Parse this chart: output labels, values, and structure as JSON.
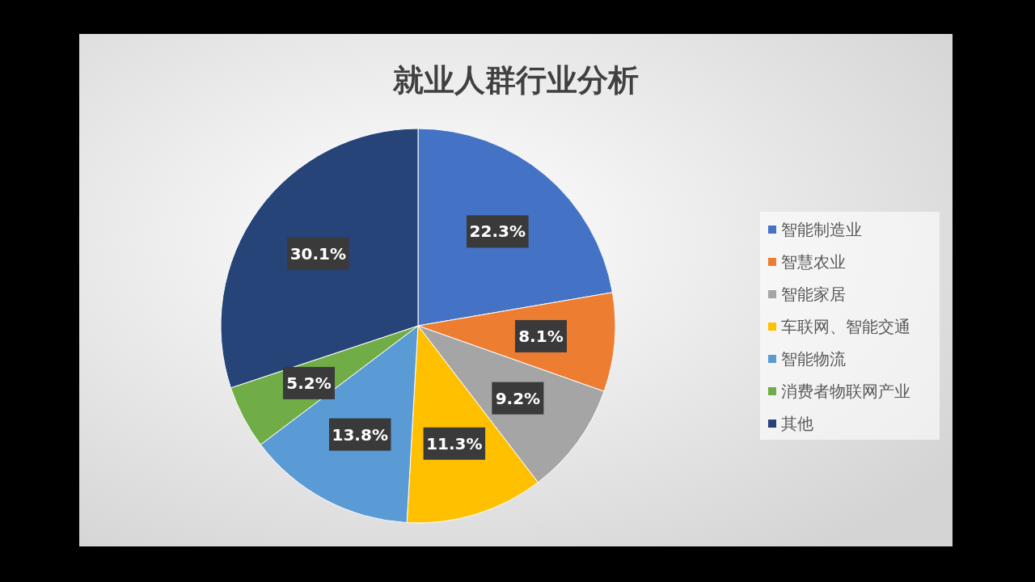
{
  "chart_data": {
    "type": "pie",
    "title": "就业人群行业分析",
    "categories": [
      "智能制造业",
      "智慧农业",
      "智能家居",
      "车联网、智能交通",
      "智能物流",
      "消费者物联网产业",
      "其他"
    ],
    "values": [
      22.3,
      8.1,
      9.2,
      11.3,
      13.8,
      5.2,
      30.1
    ],
    "colors": [
      "#4472c4",
      "#ed7d31",
      "#a5a5a5",
      "#ffc000",
      "#5b9bd5",
      "#70ad47",
      "#264478"
    ],
    "value_labels": [
      "22.3%",
      "8.1%",
      "9.2%",
      "11.3%",
      "13.8%",
      "5.2%",
      "30.1%"
    ],
    "legend": "right"
  }
}
